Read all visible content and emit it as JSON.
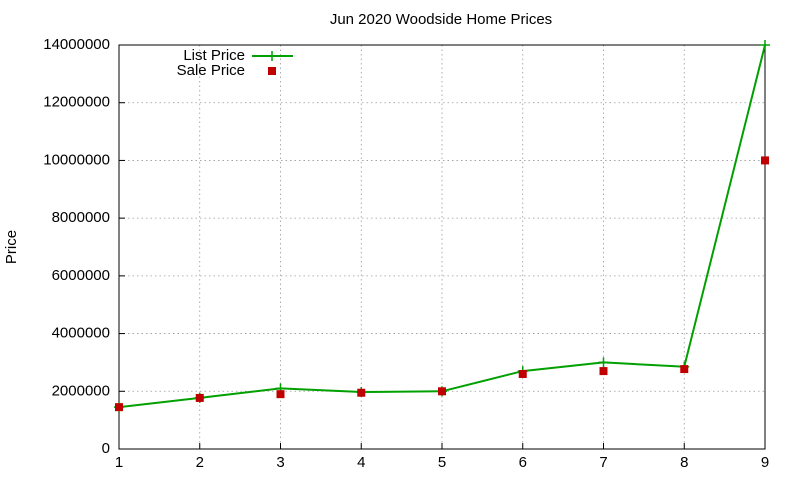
{
  "chart_data": {
    "type": "line",
    "title": "Jun 2020 Woodside Home Prices",
    "y_label": "Price",
    "x": [
      1,
      2,
      3,
      4,
      5,
      6,
      7,
      8,
      9
    ],
    "series": [
      {
        "name": "List Price",
        "color": "#00a000",
        "style": "linespoints",
        "values": [
          1450000,
          1770000,
          2100000,
          1975000,
          2000000,
          2700000,
          3000000,
          2850000,
          14000000
        ]
      },
      {
        "name": "Sale Price",
        "color": "#c00000",
        "style": "points",
        "values": [
          1450000,
          1770000,
          1900000,
          1950000,
          2000000,
          2600000,
          2700000,
          2770000,
          10000000
        ]
      }
    ],
    "xlim": [
      1,
      9
    ],
    "xticks": [
      1,
      2,
      3,
      4,
      5,
      6,
      7,
      8,
      9
    ],
    "ylim": [
      0,
      14000000
    ],
    "yticks": [
      0,
      2000000,
      4000000,
      6000000,
      8000000,
      10000000,
      12000000,
      14000000
    ],
    "grid": true,
    "legend": "top-left"
  }
}
